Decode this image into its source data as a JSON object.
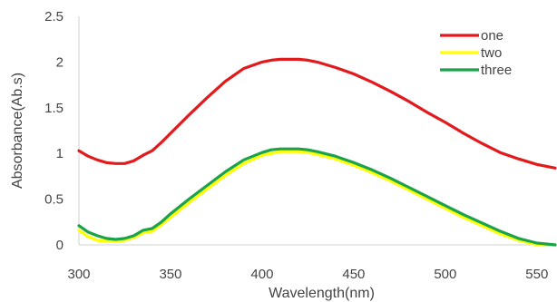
{
  "chart_data": {
    "type": "line",
    "xlabel": "Wavelength(nm)",
    "ylabel": "Absorbance(Ab.s)",
    "xlim": [
      300,
      560
    ],
    "ylim": [
      0,
      2.5
    ],
    "x_ticks": [
      "300",
      "350",
      "400",
      "450",
      "500",
      "550"
    ],
    "y_ticks": [
      "0",
      "0.5",
      "1",
      "1.5",
      "2",
      "2.5"
    ],
    "grid": false,
    "legend_position": "top-right",
    "series": [
      {
        "name": "one",
        "color": "#e31a1c",
        "x": [
          300,
          305,
          310,
          315,
          320,
          325,
          330,
          335,
          340,
          345,
          350,
          360,
          370,
          380,
          390,
          400,
          405,
          410,
          415,
          420,
          425,
          430,
          440,
          450,
          460,
          470,
          480,
          490,
          500,
          510,
          520,
          530,
          540,
          550,
          560
        ],
        "y": [
          1.03,
          0.97,
          0.93,
          0.9,
          0.89,
          0.89,
          0.92,
          0.98,
          1.03,
          1.12,
          1.22,
          1.42,
          1.61,
          1.79,
          1.93,
          2.0,
          2.02,
          2.03,
          2.03,
          2.03,
          2.02,
          2.0,
          1.94,
          1.87,
          1.78,
          1.68,
          1.57,
          1.45,
          1.34,
          1.22,
          1.11,
          1.01,
          0.94,
          0.88,
          0.84
        ]
      },
      {
        "name": "two",
        "color": "#ffff00",
        "x": [
          300,
          305,
          310,
          315,
          320,
          325,
          330,
          335,
          340,
          345,
          350,
          360,
          370,
          380,
          390,
          400,
          405,
          410,
          415,
          420,
          425,
          430,
          440,
          450,
          460,
          470,
          480,
          490,
          500,
          510,
          520,
          530,
          540,
          550,
          560
        ],
        "y": [
          0.16,
          0.09,
          0.05,
          0.04,
          0.04,
          0.05,
          0.08,
          0.13,
          0.15,
          0.22,
          0.3,
          0.46,
          0.61,
          0.76,
          0.89,
          0.98,
          1.0,
          1.02,
          1.02,
          1.02,
          1.01,
          0.99,
          0.94,
          0.87,
          0.79,
          0.7,
          0.6,
          0.5,
          0.4,
          0.3,
          0.21,
          0.12,
          0.05,
          0.0,
          0.0
        ]
      },
      {
        "name": "three",
        "color": "#1aa34a",
        "x": [
          300,
          305,
          310,
          315,
          320,
          325,
          330,
          335,
          340,
          345,
          350,
          360,
          370,
          380,
          390,
          400,
          405,
          410,
          415,
          420,
          425,
          430,
          440,
          450,
          460,
          470,
          480,
          490,
          500,
          510,
          520,
          530,
          540,
          550,
          560
        ],
        "y": [
          0.21,
          0.14,
          0.1,
          0.07,
          0.06,
          0.07,
          0.1,
          0.16,
          0.18,
          0.25,
          0.34,
          0.5,
          0.65,
          0.8,
          0.93,
          1.01,
          1.04,
          1.05,
          1.05,
          1.05,
          1.04,
          1.02,
          0.97,
          0.9,
          0.82,
          0.73,
          0.63,
          0.53,
          0.43,
          0.33,
          0.24,
          0.15,
          0.07,
          0.02,
          0.0
        ]
      }
    ]
  }
}
